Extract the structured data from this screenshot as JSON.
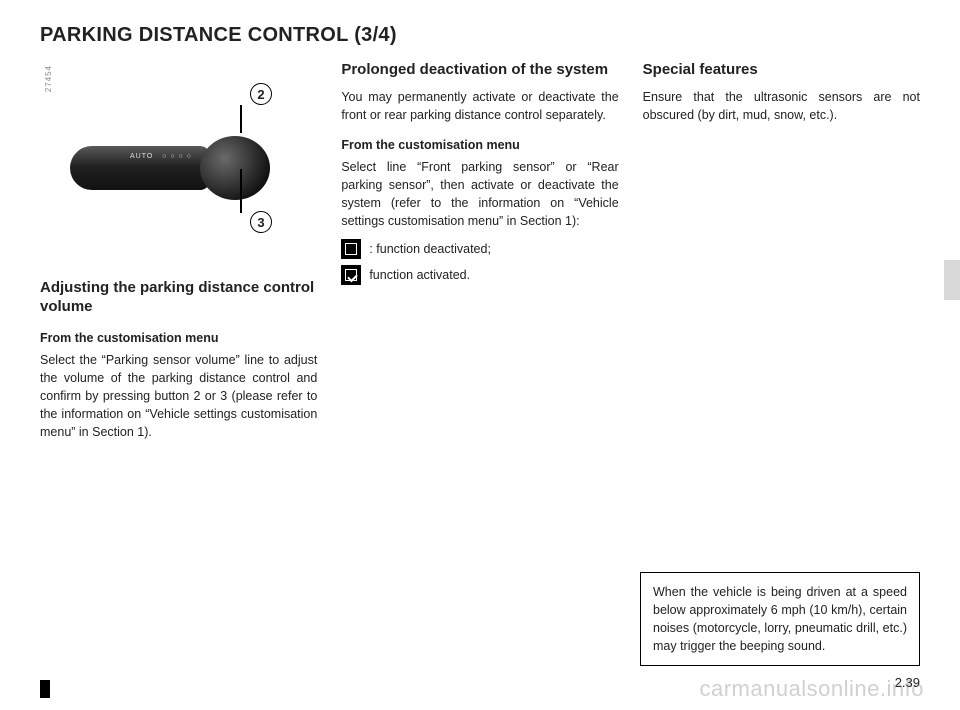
{
  "page": {
    "title_main": "PARKING DISTANCE CONTROL",
    "title_sub": "(3/4)",
    "page_number": "2.39",
    "watermark": "carmanualsonline.info",
    "image_id": "27454"
  },
  "callouts": {
    "two": "2",
    "three": "3"
  },
  "col1": {
    "heading": "Adjusting the parking distance control volume",
    "sub": "From the customisation menu",
    "body": "Select the “Parking sensor volume” line to adjust the volume of the parking distance control and confirm by pressing button 2 or 3 (please refer to the information on “Vehicle settings customisation menu” in Section 1)."
  },
  "col2": {
    "heading": "Prolonged deactivation of the system",
    "intro": "You may permanently activate or deactivate the front or rear parking distance control separately.",
    "sub": "From the customisation menu",
    "body": "Select line “Front parking sensor” or “Rear parking sensor”, then activate or deactivate the system (refer to the information on “Vehicle settings customisation menu” in Section 1):",
    "icon_off": ": function deactivated;",
    "icon_on": " function activated."
  },
  "col3": {
    "heading": "Special features",
    "body": "Ensure that the ultrasonic sensors are not obscured (by dirt, mud, snow, etc.)."
  },
  "note": {
    "text": "When the vehicle is being driven at a speed below approximately 6 mph (10 km/h), certain noises (motorcycle, lorry, pneumatic drill, etc.) may trigger the beeping sound."
  }
}
